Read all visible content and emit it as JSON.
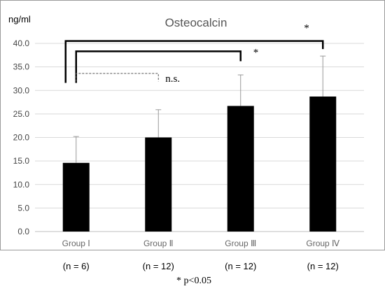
{
  "chart_data": {
    "type": "bar",
    "title": "Osteocalcin",
    "ylabel": "ng/ml",
    "xlabel": "",
    "ylim": [
      0,
      40
    ],
    "yticks": [
      "0.0",
      "5.0",
      "10.0",
      "15.0",
      "20.0",
      "25.0",
      "30.0",
      "35.0",
      "40.0"
    ],
    "categories": [
      "Group Ⅰ",
      "Group Ⅱ",
      "Group Ⅲ",
      "Group Ⅳ"
    ],
    "sample_sizes": [
      "(n = 6)",
      "(n = 12)",
      "(n = 12)",
      "(n = 12)"
    ],
    "values": [
      14.6,
      20.0,
      26.7,
      28.7
    ],
    "error_upper": [
      20.2,
      25.9,
      33.3,
      37.3
    ],
    "grid": true,
    "bar_color": "#000000",
    "comparisons": [
      {
        "from": 0,
        "to": 3,
        "label": "*",
        "style": "solid"
      },
      {
        "from": 0,
        "to": 2,
        "label": "*",
        "style": "solid"
      },
      {
        "from": 0,
        "to": 1,
        "label": "n.s.",
        "style": "dashed"
      }
    ],
    "footnote": "* p<0.05"
  }
}
